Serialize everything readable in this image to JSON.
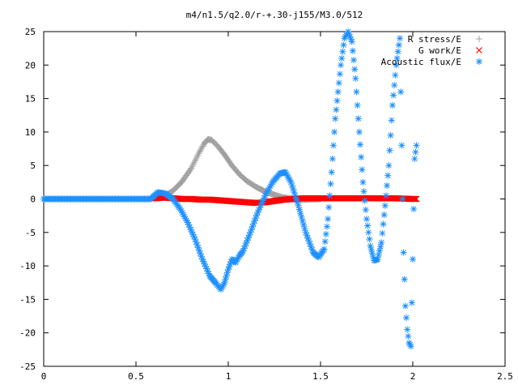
{
  "chart_data": {
    "type": "scatter",
    "title": "m4/n1.5/q2.0/r-+.30-j155/M3.0/512",
    "xlabel": "",
    "ylabel": "",
    "xlim": [
      0,
      2.5
    ],
    "ylim": [
      -25,
      25
    ],
    "x_ticks": [
      "0",
      "0.5",
      "1",
      "1.5",
      "2",
      "2.5"
    ],
    "y_ticks": [
      "25",
      "20",
      "15",
      "10",
      "5",
      "0",
      "-5",
      "-10",
      "-15",
      "-20",
      "-25"
    ],
    "grid": false,
    "legend_position": "top-right",
    "series": [
      {
        "name": "R stress/E",
        "marker": "plus",
        "color": "#a0a0a0",
        "points": [
          [
            0.6,
            0.0
          ],
          [
            0.65,
            0.4
          ],
          [
            0.7,
            1.2
          ],
          [
            0.75,
            2.6
          ],
          [
            0.8,
            4.6
          ],
          [
            0.84,
            6.8
          ],
          [
            0.87,
            8.3
          ],
          [
            0.89,
            8.9
          ],
          [
            0.91,
            8.8
          ],
          [
            0.94,
            8.0
          ],
          [
            0.98,
            6.6
          ],
          [
            1.02,
            5.0
          ],
          [
            1.06,
            3.7
          ],
          [
            1.1,
            2.7
          ],
          [
            1.15,
            1.8
          ],
          [
            1.2,
            1.1
          ],
          [
            1.25,
            0.6
          ],
          [
            1.3,
            0.2
          ],
          [
            1.35,
            0.0
          ],
          [
            1.4,
            -0.1
          ],
          [
            1.5,
            0.0
          ]
        ]
      },
      {
        "name": "G work/E",
        "marker": "cross",
        "color": "#ff0000",
        "points": [
          [
            0.6,
            0.1
          ],
          [
            0.65,
            0.2
          ],
          [
            0.7,
            0.1
          ],
          [
            0.75,
            0.0
          ],
          [
            0.8,
            0.0
          ],
          [
            0.85,
            -0.1
          ],
          [
            0.9,
            -0.1
          ],
          [
            0.95,
            -0.2
          ],
          [
            1.0,
            -0.3
          ],
          [
            1.05,
            -0.4
          ],
          [
            1.1,
            -0.5
          ],
          [
            1.15,
            -0.6
          ],
          [
            1.2,
            -0.5
          ],
          [
            1.25,
            -0.3
          ],
          [
            1.3,
            -0.1
          ],
          [
            1.35,
            0.0
          ],
          [
            1.4,
            0.1
          ],
          [
            1.5,
            0.1
          ],
          [
            1.6,
            0.1
          ],
          [
            1.7,
            0.1
          ],
          [
            1.8,
            0.1
          ],
          [
            1.9,
            0.1
          ],
          [
            2.0,
            0.0
          ],
          [
            2.02,
            0.0
          ]
        ]
      },
      {
        "name": "Acoustic flux/E",
        "marker": "star",
        "color": "#1e90ff",
        "points": [
          [
            0.0,
            0.0
          ],
          [
            0.1,
            0.0
          ],
          [
            0.2,
            0.0
          ],
          [
            0.3,
            0.0
          ],
          [
            0.4,
            0.0
          ],
          [
            0.5,
            0.0
          ],
          [
            0.58,
            0.0
          ],
          [
            0.62,
            1.0
          ],
          [
            0.66,
            0.8
          ],
          [
            0.7,
            0.0
          ],
          [
            0.74,
            -1.5
          ],
          [
            0.78,
            -3.5
          ],
          [
            0.82,
            -6.0
          ],
          [
            0.86,
            -9.0
          ],
          [
            0.9,
            -11.5
          ],
          [
            0.93,
            -12.5
          ],
          [
            0.96,
            -13.5
          ],
          [
            0.98,
            -12.5
          ],
          [
            1.0,
            -10.5
          ],
          [
            1.02,
            -9.0
          ],
          [
            1.04,
            -9.5
          ],
          [
            1.06,
            -8.5
          ],
          [
            1.08,
            -7.8
          ],
          [
            1.12,
            -5.0
          ],
          [
            1.16,
            -2.0
          ],
          [
            1.2,
            0.5
          ],
          [
            1.24,
            2.5
          ],
          [
            1.28,
            3.8
          ],
          [
            1.31,
            4.0
          ],
          [
            1.34,
            2.5
          ],
          [
            1.38,
            -1.0
          ],
          [
            1.42,
            -5.0
          ],
          [
            1.46,
            -8.0
          ],
          [
            1.49,
            -8.7
          ],
          [
            1.52,
            -7.5
          ],
          [
            1.54,
            -3.0
          ],
          [
            1.56,
            4.0
          ],
          [
            1.58,
            12.0
          ],
          [
            1.61,
            20.0
          ],
          [
            1.63,
            24.0
          ],
          [
            1.65,
            25.0
          ],
          [
            1.67,
            23.5
          ],
          [
            1.69,
            18.0
          ],
          [
            1.71,
            10.0
          ],
          [
            1.73,
            2.5
          ],
          [
            1.75,
            -3.0
          ],
          [
            1.77,
            -7.0
          ],
          [
            1.79,
            -9.2
          ],
          [
            1.81,
            -9.0
          ],
          [
            1.83,
            -6.5
          ],
          [
            1.85,
            -1.0
          ],
          [
            1.87,
            5.0
          ],
          [
            1.89,
            14.0
          ],
          [
            1.91,
            20.0
          ],
          [
            1.93,
            24.0
          ],
          [
            1.95,
            -8.0
          ],
          [
            1.96,
            -16.0
          ],
          [
            1.97,
            -19.5
          ],
          [
            1.98,
            -21.5
          ],
          [
            1.99,
            -22.0
          ],
          [
            2.0,
            -9.0
          ],
          [
            2.01,
            6.0
          ],
          [
            2.02,
            8.0
          ]
        ]
      }
    ]
  }
}
